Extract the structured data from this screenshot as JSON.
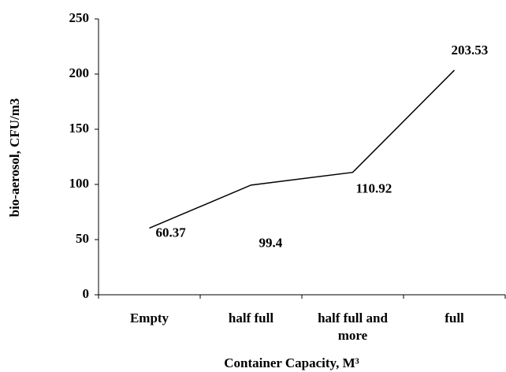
{
  "chart_data": {
    "type": "line",
    "x_label": "Container Capacity, M³",
    "y_label": "bio-aerosol, CFU/m3",
    "categories": [
      "Empty",
      "half full",
      "half full and more",
      "full"
    ],
    "series": [
      {
        "name": "bio-aerosol",
        "color": "#000000",
        "values": [
          60.37,
          99.4,
          110.92,
          203.53
        ]
      }
    ],
    "ylim": [
      0,
      250
    ],
    "yticks": [
      0,
      50,
      100,
      150,
      200,
      250
    ]
  }
}
